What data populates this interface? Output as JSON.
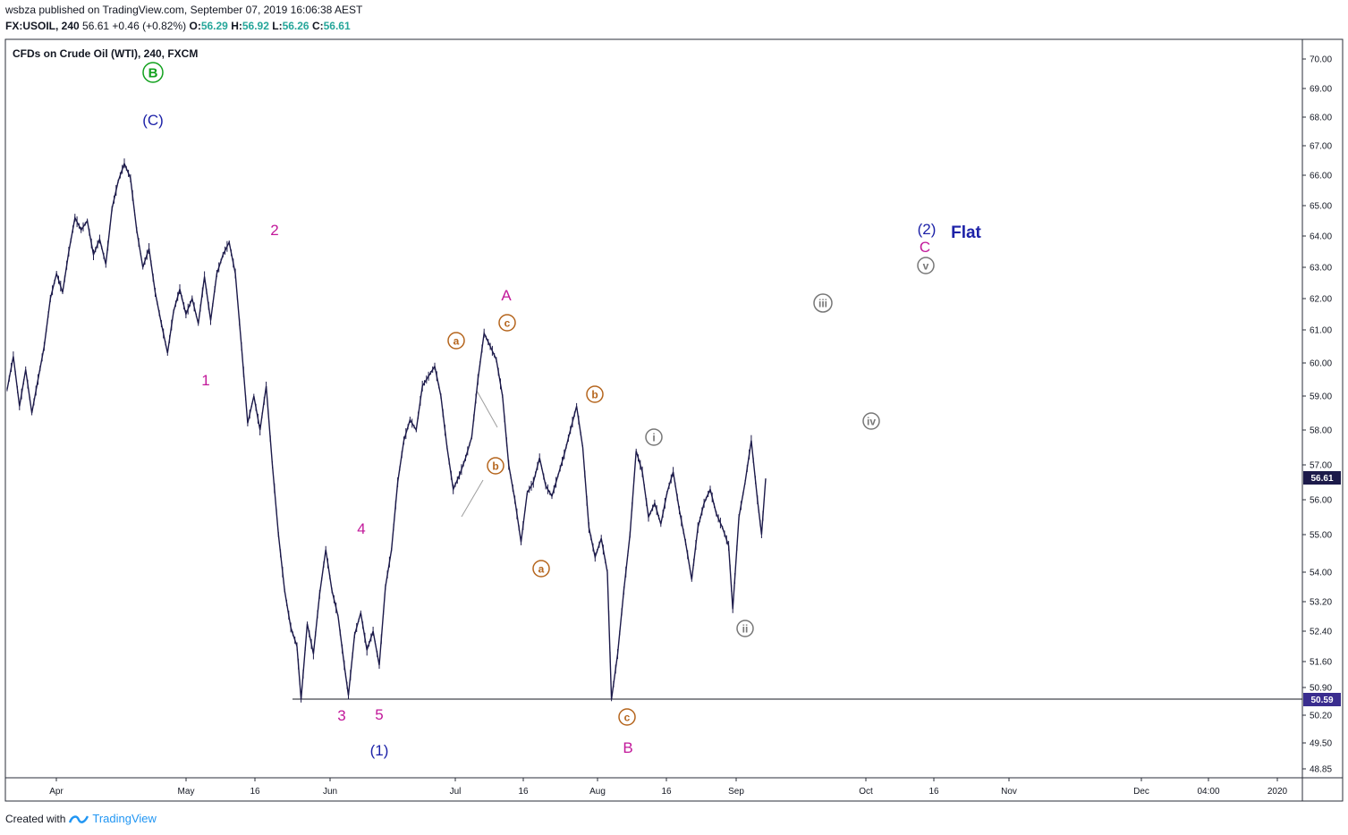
{
  "header": {
    "published_line": "wsbza published on TradingView.com, September 07, 2019 16:06:38 AEST",
    "symbol": "FX:USOIL, 240",
    "last": "56.61",
    "change": "+0.46 (+0.82%)",
    "o_label": "O:",
    "o_val": "56.29",
    "h_label": "H:",
    "h_val": "56.92",
    "l_label": "L:",
    "l_val": "56.26",
    "c_label": "C:",
    "c_val": "56.61"
  },
  "footer": {
    "created_with": "Created with",
    "brand": "TradingView"
  },
  "chart_data": {
    "type": "candlestick",
    "title": "CFDs on Crude Oil (WTI), 240, FXCM",
    "y_ticks": [
      "70.00",
      "69.00",
      "68.00",
      "67.00",
      "66.00",
      "65.00",
      "64.00",
      "63.00",
      "62.00",
      "61.00",
      "60.00",
      "59.00",
      "58.00",
      "57.00",
      "56.00",
      "55.00",
      "54.00",
      "53.20",
      "52.40",
      "51.60",
      "50.90",
      "50.20",
      "49.50",
      "48.85"
    ],
    "x_ticks": [
      "Apr",
      "May",
      "16",
      "Jun",
      "Jul",
      "16",
      "Aug",
      "16",
      "Sep",
      "Oct",
      "16",
      "Nov",
      "Dec",
      "04:00",
      "2020"
    ],
    "last_price_label": "56.61",
    "level_label": "50.59",
    "colors": {
      "price": "#1c1a4a",
      "purple": "#c2189a",
      "blue": "#1d22a8",
      "green": "#11a11d",
      "orange": "#b5651d",
      "gray": "#777777",
      "last_bg": "#1c1a4a",
      "level_bg": "#3a2d8f"
    },
    "wave_labels": [
      {
        "text": "B",
        "color": "green",
        "circled": true
      },
      {
        "text": "(C)",
        "color": "blue",
        "circled": false
      },
      {
        "text": "1",
        "color": "purple",
        "circled": false
      },
      {
        "text": "2",
        "color": "purple",
        "circled": false
      },
      {
        "text": "3",
        "color": "purple",
        "circled": false
      },
      {
        "text": "4",
        "color": "purple",
        "circled": false
      },
      {
        "text": "5",
        "color": "purple",
        "circled": false
      },
      {
        "text": "(1)",
        "color": "blue",
        "circled": false
      },
      {
        "text": "a",
        "color": "orange",
        "circled": true
      },
      {
        "text": "b",
        "color": "orange",
        "circled": true
      },
      {
        "text": "c",
        "color": "orange",
        "circled": true
      },
      {
        "text": "A",
        "color": "purple",
        "circled": false
      },
      {
        "text": "a",
        "color": "orange",
        "circled": true
      },
      {
        "text": "b",
        "color": "orange",
        "circled": true
      },
      {
        "text": "c",
        "color": "orange",
        "circled": true
      },
      {
        "text": "B",
        "color": "purple",
        "circled": false
      },
      {
        "text": "i",
        "color": "gray",
        "circled": true
      },
      {
        "text": "ii",
        "color": "gray",
        "circled": true
      },
      {
        "text": "iii",
        "color": "gray",
        "circled": true
      },
      {
        "text": "iv",
        "color": "gray",
        "circled": true
      },
      {
        "text": "v",
        "color": "gray",
        "circled": true
      },
      {
        "text": "C",
        "color": "purple",
        "circled": false
      },
      {
        "text": "(2)",
        "color": "blue",
        "circled": false
      },
      {
        "text": "Flat",
        "color": "blue",
        "circled": false
      }
    ],
    "price_path": [
      [
        0,
        59.2
      ],
      [
        3,
        60.2
      ],
      [
        6,
        58.7
      ],
      [
        9,
        59.8
      ],
      [
        12,
        58.5
      ],
      [
        15,
        59.5
      ],
      [
        18,
        60.5
      ],
      [
        21,
        62.0
      ],
      [
        24,
        62.8
      ],
      [
        27,
        62.2
      ],
      [
        30,
        63.5
      ],
      [
        33,
        64.6
      ],
      [
        36,
        64.2
      ],
      [
        39,
        64.5
      ],
      [
        42,
        63.4
      ],
      [
        45,
        63.9
      ],
      [
        48,
        63.1
      ],
      [
        51,
        64.9
      ],
      [
        54,
        65.8
      ],
      [
        57,
        66.4
      ],
      [
        60,
        65.9
      ],
      [
        63,
        64.2
      ],
      [
        66,
        63.0
      ],
      [
        69,
        63.6
      ],
      [
        72,
        62.2
      ],
      [
        75,
        61.2
      ],
      [
        78,
        60.3
      ],
      [
        81,
        61.6
      ],
      [
        84,
        62.3
      ],
      [
        87,
        61.5
      ],
      [
        90,
        62.0
      ],
      [
        93,
        61.2
      ],
      [
        96,
        62.7
      ],
      [
        99,
        61.3
      ],
      [
        102,
        62.8
      ],
      [
        105,
        63.4
      ],
      [
        108,
        63.8
      ],
      [
        111,
        62.8
      ],
      [
        114,
        60.5
      ],
      [
        117,
        58.2
      ],
      [
        120,
        59.0
      ],
      [
        123,
        58.0
      ],
      [
        126,
        59.3
      ],
      [
        129,
        57.0
      ],
      [
        132,
        55.0
      ],
      [
        135,
        53.5
      ],
      [
        138,
        52.5
      ],
      [
        141,
        52.0
      ],
      [
        143,
        50.6
      ],
      [
        146,
        52.6
      ],
      [
        149,
        51.8
      ],
      [
        152,
        53.4
      ],
      [
        155,
        54.6
      ],
      [
        158,
        53.5
      ],
      [
        161,
        52.8
      ],
      [
        164,
        51.5
      ],
      [
        166,
        50.7
      ],
      [
        169,
        52.3
      ],
      [
        172,
        52.9
      ],
      [
        175,
        51.9
      ],
      [
        178,
        52.4
      ],
      [
        181,
        51.5
      ],
      [
        184,
        53.6
      ],
      [
        187,
        54.6
      ],
      [
        190,
        56.5
      ],
      [
        193,
        57.7
      ],
      [
        196,
        58.3
      ],
      [
        199,
        58.0
      ],
      [
        202,
        59.3
      ],
      [
        205,
        59.6
      ],
      [
        208,
        59.9
      ],
      [
        211,
        59.0
      ],
      [
        214,
        57.5
      ],
      [
        217,
        56.3
      ],
      [
        220,
        56.7
      ],
      [
        223,
        57.2
      ],
      [
        226,
        57.8
      ],
      [
        229,
        59.5
      ],
      [
        232,
        60.9
      ],
      [
        235,
        60.5
      ],
      [
        238,
        60.1
      ],
      [
        241,
        59.0
      ],
      [
        244,
        57.0
      ],
      [
        247,
        56.0
      ],
      [
        250,
        54.8
      ],
      [
        253,
        56.2
      ],
      [
        256,
        56.5
      ],
      [
        259,
        57.2
      ],
      [
        262,
        56.4
      ],
      [
        265,
        56.1
      ],
      [
        268,
        56.7
      ],
      [
        271,
        57.3
      ],
      [
        274,
        58.0
      ],
      [
        277,
        58.7
      ],
      [
        280,
        57.5
      ],
      [
        283,
        55.2
      ],
      [
        286,
        54.4
      ],
      [
        289,
        54.9
      ],
      [
        292,
        54.0
      ],
      [
        294,
        50.6
      ],
      [
        297,
        51.8
      ],
      [
        300,
        53.5
      ],
      [
        303,
        55.0
      ],
      [
        306,
        57.4
      ],
      [
        309,
        56.8
      ],
      [
        312,
        55.5
      ],
      [
        315,
        55.9
      ],
      [
        318,
        55.3
      ],
      [
        321,
        56.2
      ],
      [
        324,
        56.8
      ],
      [
        327,
        55.7
      ],
      [
        330,
        54.8
      ],
      [
        333,
        53.8
      ],
      [
        336,
        55.2
      ],
      [
        339,
        55.9
      ],
      [
        342,
        56.3
      ],
      [
        345,
        55.6
      ],
      [
        348,
        55.2
      ],
      [
        351,
        54.7
      ],
      [
        353,
        53.0
      ],
      [
        356,
        55.5
      ],
      [
        359,
        56.5
      ],
      [
        362,
        57.7
      ],
      [
        365,
        56.0
      ],
      [
        367,
        55.0
      ],
      [
        369,
        56.61
      ]
    ]
  }
}
